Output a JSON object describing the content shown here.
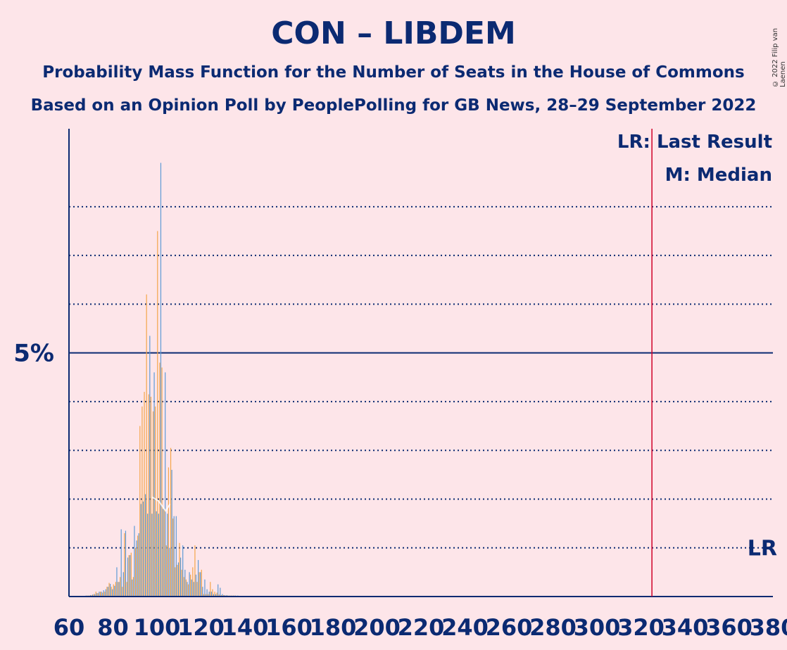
{
  "title": "CON – LIBDEM",
  "subtitle1": "Probability Mass Function for the Number of Seats in the House of Commons",
  "subtitle2": "Based on an Opinion Poll by PeoplePolling for GB News, 28–29 September 2022",
  "credit": "© 2022 Filip van Laenen",
  "legend": {
    "last_result": "LR: Last Result",
    "median": "M: Median"
  },
  "colors": {
    "blue": "#5e9ad6",
    "orange": "#f4a54a",
    "navy": "#0b2a72",
    "red": "#d00028",
    "background": "#fde5e9"
  },
  "chart_data": {
    "type": "bar",
    "xlabel": "",
    "ylabel": "",
    "xlim": [
      60,
      380
    ],
    "xticks": [
      60,
      80,
      100,
      120,
      140,
      160,
      180,
      200,
      220,
      240,
      260,
      280,
      300,
      320,
      340,
      360,
      380
    ],
    "xtick_labels": [
      "60",
      "80",
      "100",
      "120",
      "140",
      "160",
      "180",
      "200",
      "220",
      "240",
      "260",
      "280",
      "300",
      "320",
      "340",
      "360",
      "380"
    ],
    "ylim": [
      0,
      9.6
    ],
    "ytick_label": {
      "value": 5,
      "label": "5%"
    },
    "gridlines": [
      1,
      2,
      3,
      4,
      5,
      6,
      7,
      8
    ],
    "last_result": {
      "seats": 325,
      "label": "LR",
      "label_level": 1
    },
    "median": {
      "seats": 104,
      "level": 1.9
    },
    "series": [
      {
        "name": "blue",
        "x": [
          66,
          67,
          68,
          69,
          70,
          71,
          72,
          73,
          74,
          75,
          76,
          77,
          78,
          79,
          80,
          81,
          82,
          83,
          84,
          85,
          86,
          87,
          88,
          89,
          90,
          91,
          92,
          93,
          94,
          95,
          96,
          97,
          98,
          99,
          100,
          101,
          102,
          103,
          104,
          105,
          106,
          107,
          108,
          109,
          110,
          111,
          112,
          113,
          114,
          115,
          116,
          117,
          118,
          119,
          120,
          121,
          122,
          123,
          124,
          125,
          126,
          127,
          128,
          129,
          130,
          131,
          132,
          133,
          134,
          135,
          136,
          137,
          138,
          139,
          140,
          141,
          142,
          143,
          144,
          145,
          146,
          147,
          148,
          149,
          150
        ],
        "values": [
          0.01,
          0.01,
          0.02,
          0.02,
          0.03,
          0.04,
          0.05,
          0.07,
          0.1,
          0.1,
          0.13,
          0.15,
          0.2,
          0.26,
          0.15,
          0.22,
          0.6,
          0.3,
          1.38,
          0.5,
          1.35,
          0.8,
          0.85,
          0.35,
          1.45,
          1.15,
          1.3,
          1.9,
          1.95,
          2.1,
          1.7,
          5.35,
          1.7,
          4.6,
          1.75,
          1.7,
          8.9,
          1.8,
          4.6,
          1.7,
          1.0,
          2.6,
          1.65,
          1.65,
          0.7,
          0.8,
          1.05,
          0.55,
          0.3,
          0.5,
          0.35,
          0.3,
          0.45,
          0.75,
          0.5,
          0.2,
          0.35,
          0.15,
          0.1,
          0.1,
          0.05,
          0.05,
          0.25,
          0.18,
          0.05,
          0.03,
          0.03,
          0.02,
          0.02,
          0.02,
          0.02,
          0.02,
          0.01,
          0.01,
          0.01,
          0.01,
          0.01,
          0.01,
          0.01,
          0.01,
          0.01,
          0.01,
          0.01,
          0.01,
          0.01
        ]
      },
      {
        "name": "orange",
        "x": [
          66,
          67,
          68,
          69,
          70,
          71,
          72,
          73,
          74,
          75,
          76,
          77,
          78,
          79,
          80,
          81,
          82,
          83,
          84,
          85,
          86,
          87,
          88,
          89,
          90,
          91,
          92,
          93,
          94,
          95,
          96,
          97,
          98,
          99,
          100,
          101,
          102,
          103,
          104,
          105,
          106,
          107,
          108,
          109,
          110,
          111,
          112,
          113,
          114,
          115,
          116,
          117,
          118,
          119,
          120,
          121,
          122,
          123,
          124,
          125,
          126,
          127,
          128,
          129,
          130,
          131,
          132,
          133,
          134,
          135,
          136,
          137,
          138,
          139,
          140,
          141,
          142,
          143,
          144,
          145,
          146,
          147,
          148,
          149,
          150
        ],
        "values": [
          0.01,
          0.01,
          0.02,
          0.02,
          0.03,
          0.05,
          0.1,
          0.07,
          0.1,
          0.08,
          0.1,
          0.2,
          0.28,
          0.2,
          0.25,
          0.3,
          0.3,
          0.4,
          0.2,
          1.3,
          0.3,
          0.85,
          0.9,
          0.4,
          1.0,
          1.25,
          3.5,
          3.9,
          4.2,
          6.2,
          4.15,
          4.1,
          3.8,
          3.9,
          7.5,
          4.8,
          4.7,
          1.8,
          1.05,
          2.65,
          3.05,
          1.6,
          0.6,
          0.65,
          1.1,
          0.55,
          0.4,
          0.35,
          0.25,
          0.45,
          0.6,
          1.05,
          0.3,
          0.5,
          0.55,
          0.05,
          0.05,
          0.05,
          0.3,
          0.15,
          0.1,
          0.08,
          0.04,
          0.03,
          0.03,
          0.02,
          0.02,
          0.02,
          0.02,
          0.02,
          0.01,
          0.01,
          0.01,
          0.01,
          0.01,
          0.01,
          0.01,
          0.01,
          0.01,
          0.01,
          0.01,
          0.01,
          0.01,
          0.01,
          0.01
        ]
      }
    ]
  }
}
